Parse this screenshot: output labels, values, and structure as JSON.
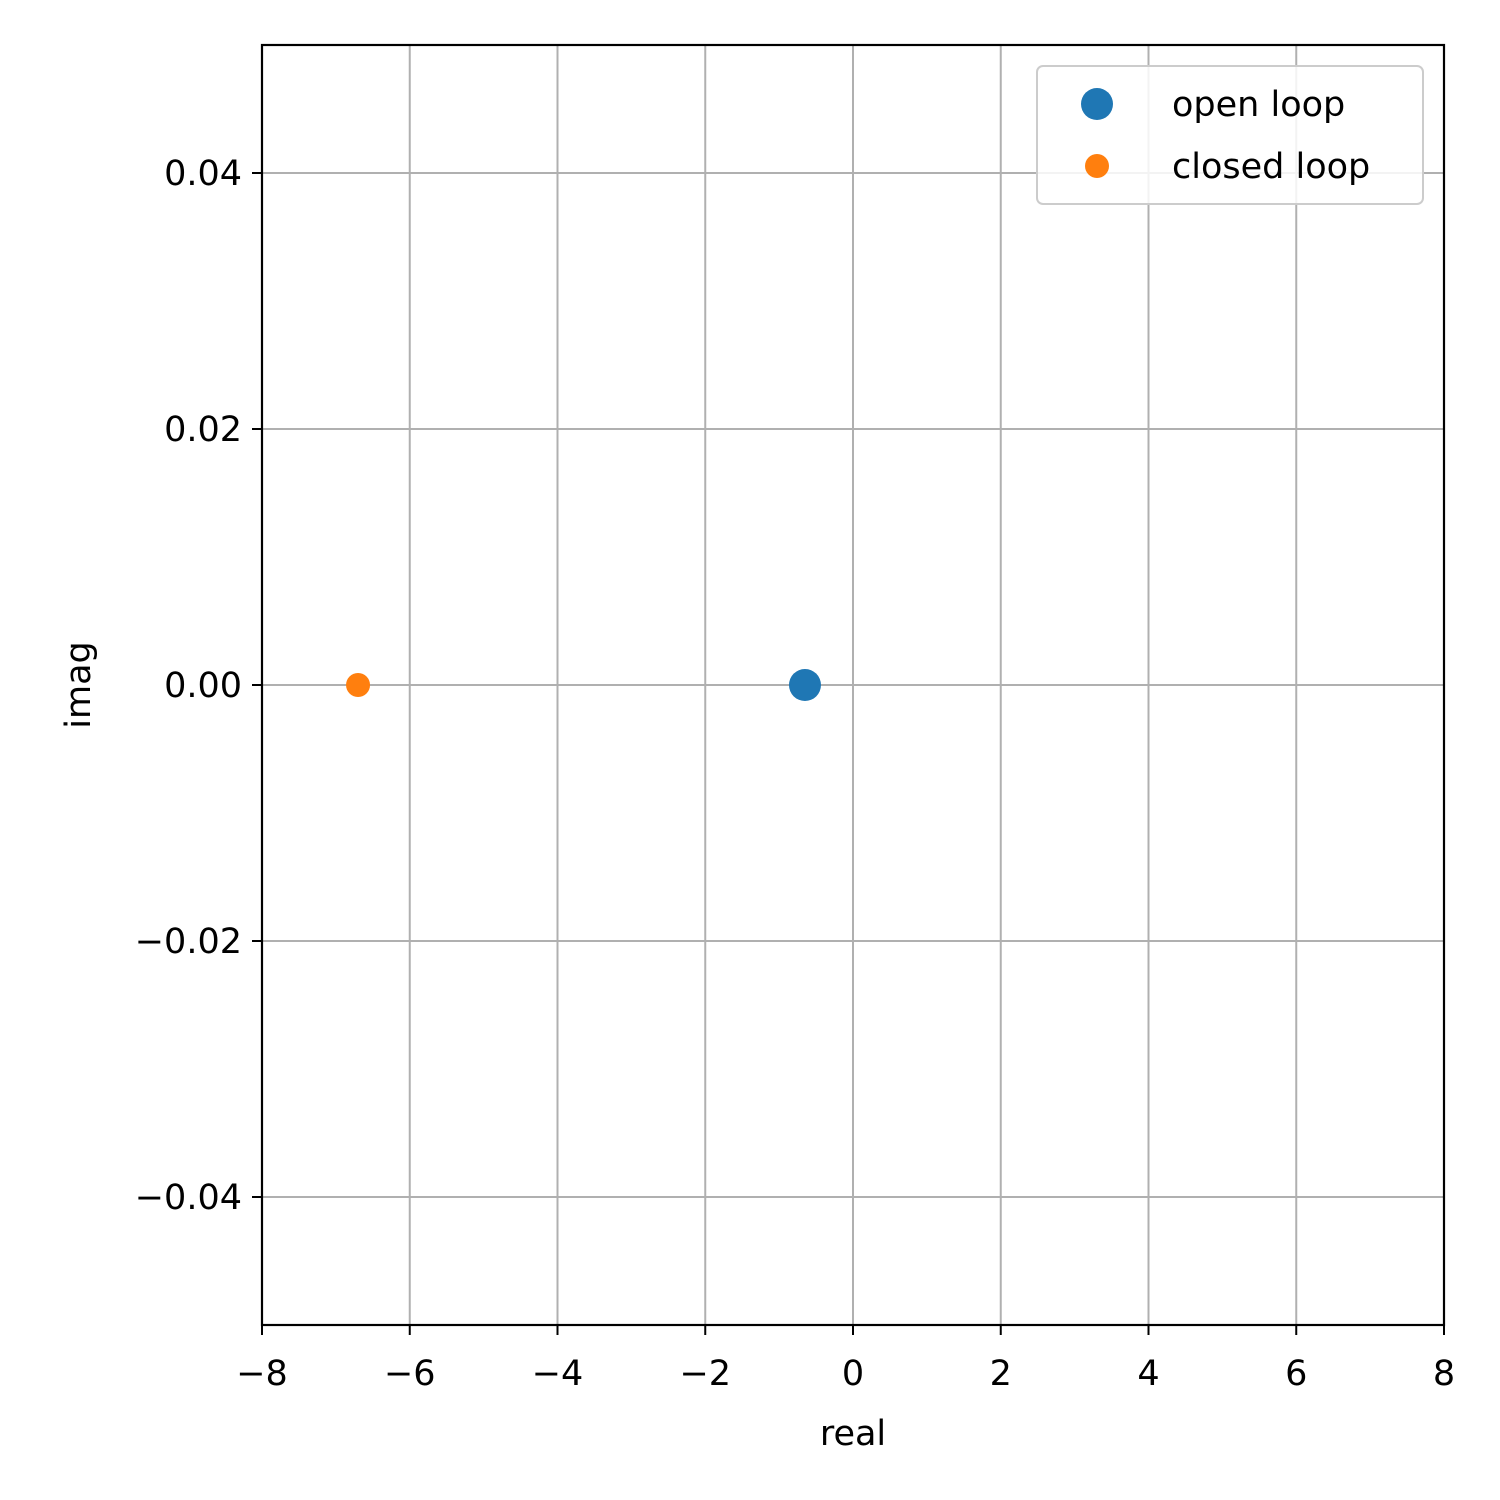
{
  "chart_data": {
    "type": "scatter",
    "xlabel": "real",
    "ylabel": "imag",
    "xlim": [
      -8,
      8
    ],
    "ylim": [
      -0.05,
      0.05
    ],
    "x_ticks": [
      -8,
      -6,
      -4,
      -2,
      0,
      2,
      4,
      6,
      8
    ],
    "x_tick_labels": [
      "−8",
      "−6",
      "−4",
      "−2",
      "0",
      "2",
      "4",
      "6",
      "8"
    ],
    "y_ticks": [
      -0.04,
      -0.02,
      0.0,
      0.02,
      0.04
    ],
    "y_tick_labels": [
      "−0.04",
      "−0.02",
      "0.00",
      "0.02",
      "0.04"
    ],
    "grid": true,
    "legend_position": "top-right",
    "series": [
      {
        "name": "open loop",
        "color": "#1f77b4",
        "size": "large",
        "points": [
          {
            "x": -0.65,
            "y": 0.0
          }
        ]
      },
      {
        "name": "closed loop",
        "color": "#ff7f0e",
        "size": "small",
        "points": [
          {
            "x": -6.7,
            "y": 0.0
          }
        ]
      }
    ]
  }
}
